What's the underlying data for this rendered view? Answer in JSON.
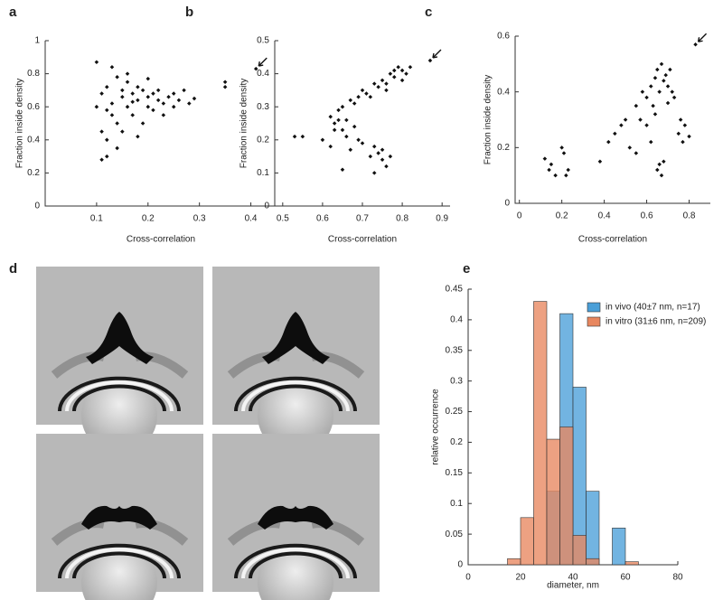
{
  "chart_data": [
    {
      "type": "scatter",
      "panel": "a",
      "xlabel": "Cross-correlation",
      "ylabel": "Fraction inside density",
      "xlim": [
        0,
        0.45
      ],
      "ylim": [
        0,
        1
      ],
      "xticks": [
        0.1,
        0.2,
        0.3,
        0.4
      ],
      "yticks": [
        0,
        0.2,
        0.4,
        0.6,
        0.8,
        1
      ],
      "color": "#111111",
      "arrow": true,
      "x": [
        0.1,
        0.1,
        0.11,
        0.11,
        0.12,
        0.12,
        0.12,
        0.13,
        0.13,
        0.14,
        0.14,
        0.15,
        0.15,
        0.15,
        0.16,
        0.16,
        0.17,
        0.17,
        0.18,
        0.18,
        0.19,
        0.19,
        0.2,
        0.2,
        0.21,
        0.21,
        0.22,
        0.22,
        0.23,
        0.23,
        0.24,
        0.25,
        0.25,
        0.26,
        0.27,
        0.28,
        0.29,
        0.12,
        0.13,
        0.16,
        0.18,
        0.2,
        0.14,
        0.11,
        0.17,
        0.35,
        0.35,
        0.41
      ],
      "y": [
        0.87,
        0.6,
        0.68,
        0.45,
        0.72,
        0.4,
        0.3,
        0.62,
        0.55,
        0.78,
        0.5,
        0.7,
        0.66,
        0.45,
        0.8,
        0.6,
        0.68,
        0.55,
        0.72,
        0.64,
        0.7,
        0.5,
        0.66,
        0.6,
        0.68,
        0.58,
        0.64,
        0.7,
        0.62,
        0.55,
        0.66,
        0.68,
        0.6,
        0.64,
        0.7,
        0.62,
        0.65,
        0.58,
        0.84,
        0.75,
        0.42,
        0.77,
        0.35,
        0.28,
        0.63,
        0.75,
        0.72,
        0.83
      ]
    },
    {
      "type": "scatter",
      "panel": "b",
      "xlabel": "Cross-correlation",
      "ylabel": "Fraction inside density",
      "xlim": [
        0.48,
        0.92
      ],
      "ylim": [
        0,
        0.5
      ],
      "xticks": [
        0.5,
        0.6,
        0.7,
        0.8,
        0.9
      ],
      "yticks": [
        0,
        0.1,
        0.2,
        0.3,
        0.4,
        0.5
      ],
      "color": "#111111",
      "arrow": true,
      "x": [
        0.53,
        0.55,
        0.6,
        0.62,
        0.63,
        0.64,
        0.65,
        0.65,
        0.66,
        0.67,
        0.68,
        0.69,
        0.7,
        0.71,
        0.72,
        0.73,
        0.74,
        0.75,
        0.76,
        0.77,
        0.78,
        0.79,
        0.8,
        0.81,
        0.82,
        0.76,
        0.78,
        0.8,
        0.62,
        0.63,
        0.64,
        0.66,
        0.67,
        0.68,
        0.7,
        0.72,
        0.73,
        0.74,
        0.75,
        0.76,
        0.77,
        0.73,
        0.75,
        0.65,
        0.69,
        0.87
      ],
      "y": [
        0.21,
        0.21,
        0.2,
        0.27,
        0.25,
        0.29,
        0.3,
        0.23,
        0.26,
        0.32,
        0.31,
        0.33,
        0.35,
        0.34,
        0.33,
        0.37,
        0.36,
        0.38,
        0.37,
        0.4,
        0.39,
        0.42,
        0.41,
        0.4,
        0.42,
        0.35,
        0.41,
        0.38,
        0.18,
        0.23,
        0.26,
        0.21,
        0.17,
        0.24,
        0.19,
        0.15,
        0.18,
        0.16,
        0.14,
        0.12,
        0.15,
        0.1,
        0.17,
        0.11,
        0.2,
        0.44
      ]
    },
    {
      "type": "scatter",
      "panel": "c",
      "xlabel": "Cross-correlation",
      "ylabel": "Fraction inside density",
      "xlim": [
        -0.02,
        0.9
      ],
      "ylim": [
        0,
        0.6
      ],
      "xticks": [
        0,
        0.2,
        0.4,
        0.6,
        0.8
      ],
      "yticks": [
        0,
        0.2,
        0.4,
        0.6
      ],
      "color": "#111111",
      "arrow": true,
      "x": [
        0.12,
        0.14,
        0.15,
        0.17,
        0.2,
        0.21,
        0.23,
        0.22,
        0.38,
        0.42,
        0.45,
        0.48,
        0.5,
        0.52,
        0.55,
        0.57,
        0.58,
        0.6,
        0.62,
        0.63,
        0.64,
        0.65,
        0.66,
        0.67,
        0.68,
        0.69,
        0.7,
        0.7,
        0.71,
        0.72,
        0.73,
        0.65,
        0.67,
        0.68,
        0.62,
        0.6,
        0.55,
        0.75,
        0.77,
        0.78,
        0.8,
        0.76,
        0.64,
        0.66,
        0.83
      ],
      "y": [
        0.16,
        0.12,
        0.14,
        0.1,
        0.2,
        0.18,
        0.12,
        0.1,
        0.15,
        0.22,
        0.25,
        0.28,
        0.3,
        0.2,
        0.35,
        0.3,
        0.4,
        0.38,
        0.42,
        0.35,
        0.45,
        0.48,
        0.4,
        0.5,
        0.44,
        0.46,
        0.42,
        0.36,
        0.48,
        0.4,
        0.38,
        0.12,
        0.1,
        0.15,
        0.22,
        0.28,
        0.18,
        0.25,
        0.22,
        0.28,
        0.24,
        0.3,
        0.32,
        0.14,
        0.57
      ]
    },
    {
      "type": "image",
      "panel": "d"
    },
    {
      "type": "histogram",
      "panel": "e",
      "xlabel": "diameter, nm",
      "ylabel": "relative occurrence",
      "xlim": [
        0,
        80
      ],
      "ylim": [
        0,
        0.45
      ],
      "xticks": [
        0,
        20,
        40,
        60,
        80
      ],
      "yticks": [
        0,
        0.05,
        0.1,
        0.15,
        0.2,
        0.25,
        0.3,
        0.35,
        0.4,
        0.45
      ],
      "legend": "upper right",
      "bins": [
        15,
        20,
        25,
        30,
        35,
        40,
        45,
        50,
        55,
        60,
        65
      ],
      "series": [
        {
          "name": "in vivo (40±7 nm, n=17)",
          "color": "#4a9fd8",
          "values": [
            0,
            0,
            0,
            0.12,
            0.41,
            0.29,
            0.12,
            0,
            0.06,
            0
          ]
        },
        {
          "name": "in vitro (31±6 nm, n=209)",
          "color": "#e8875f",
          "values": [
            0.01,
            0.077,
            0.43,
            0.205,
            0.225,
            0.048,
            0.01,
            0,
            0,
            0.005
          ]
        }
      ]
    }
  ]
}
